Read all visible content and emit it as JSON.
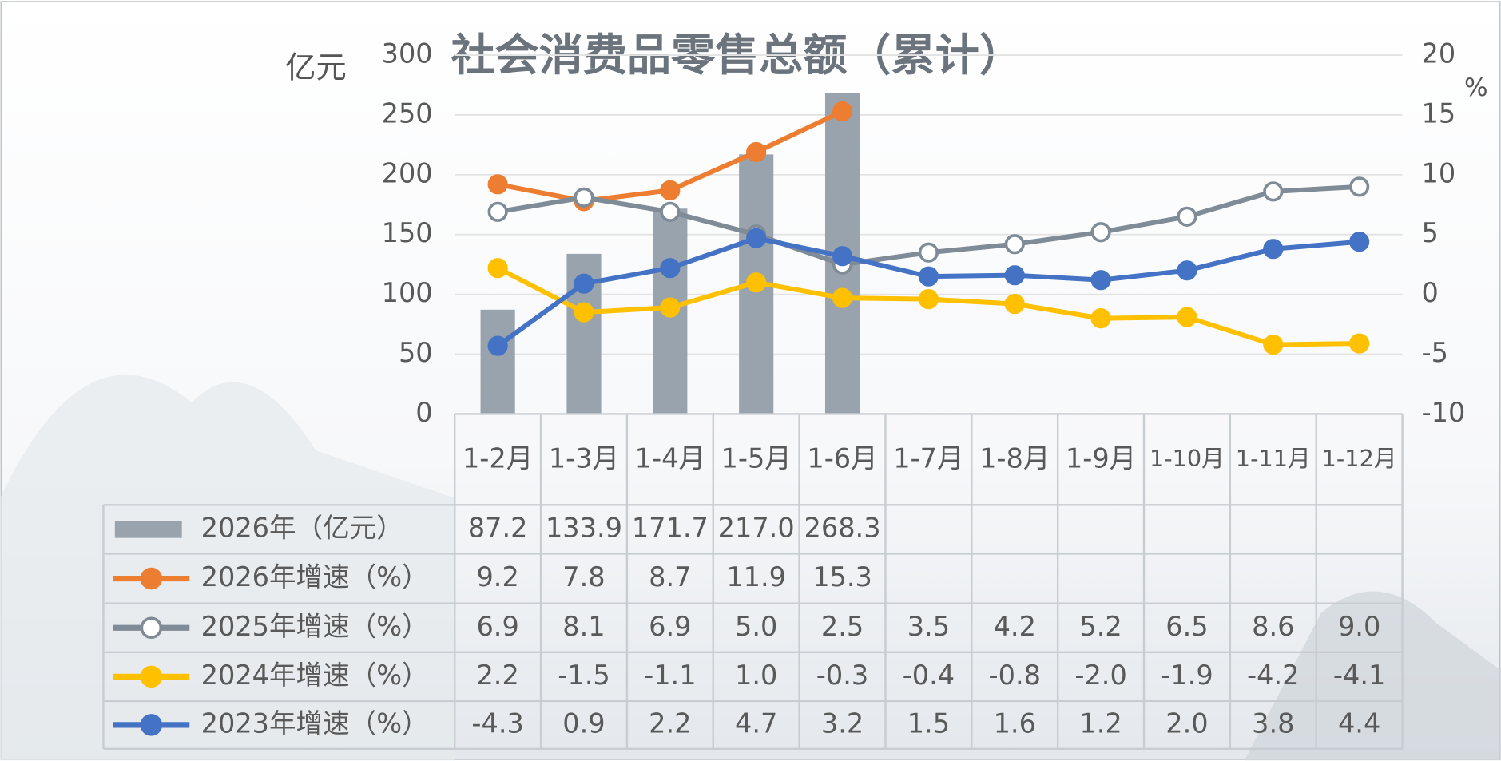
{
  "chart_data": {
    "type": "bar-line-table",
    "title": "社会消费品零售总额（累计）",
    "ylabel": "亿元",
    "y2label": "%",
    "categories": [
      "1-2月",
      "1-3月",
      "1-4月",
      "1-5月",
      "1-6月",
      "1-7月",
      "1-8月",
      "1-9月",
      "1-10月",
      "1-11月",
      "1-12月"
    ],
    "ylim": [
      0,
      300
    ],
    "yticks": [
      0,
      50,
      100,
      150,
      200,
      250,
      300
    ],
    "y2lim": [
      -10,
      20
    ],
    "y2ticks": [
      -10,
      -5,
      0,
      5,
      10,
      15,
      20
    ],
    "grid": true,
    "series": [
      {
        "name": "2026年（亿元）",
        "type": "bar",
        "color": "#99a3ae",
        "values": [
          87.2,
          133.9,
          171.7,
          217.0,
          268.3,
          null,
          null,
          null,
          null,
          null,
          null
        ],
        "value_labels": [
          "87.2",
          "133.9",
          "171.7",
          "217.0",
          "268.3",
          null,
          null,
          null,
          null,
          null,
          null
        ]
      },
      {
        "name": "2026年增速（%）",
        "type": "line",
        "axis": "y2",
        "color": "#ed7d31",
        "marker_fill": "#ed7d31",
        "values": [
          9.2,
          7.8,
          8.7,
          11.9,
          15.3,
          null,
          null,
          null,
          null,
          null,
          null
        ],
        "value_labels": [
          "9.2",
          "7.8",
          "8.7",
          "11.9",
          "15.3",
          null,
          null,
          null,
          null,
          null,
          null
        ]
      },
      {
        "name": "2025年增速（%）",
        "type": "line",
        "axis": "y2",
        "color": "#7f8b97",
        "marker_fill": "#ffffff",
        "values": [
          6.9,
          8.1,
          6.9,
          5.0,
          2.5,
          3.5,
          4.2,
          5.2,
          6.5,
          8.6,
          9.0
        ],
        "value_labels": [
          "6.9",
          "8.1",
          "6.9",
          "5.0",
          "2.5",
          "3.5",
          "4.2",
          "5.2",
          "6.5",
          "8.6",
          "9.0"
        ]
      },
      {
        "name": "2024年增速（%）",
        "type": "line",
        "axis": "y2",
        "color": "#ffc000",
        "marker_fill": "#ffc000",
        "values": [
          2.2,
          -1.5,
          -1.1,
          1.0,
          -0.3,
          -0.4,
          -0.8,
          -2.0,
          -1.9,
          -4.2,
          -4.1
        ],
        "value_labels": [
          "2.2",
          "-1.5",
          "-1.1",
          "1.0",
          "-0.3",
          "-0.4",
          "-0.8",
          "-2.0",
          "-1.9",
          "-4.2",
          "-4.1"
        ]
      },
      {
        "name": "2023年增速（%）",
        "type": "line",
        "axis": "y2",
        "color": "#4472c4",
        "marker_fill": "#4472c4",
        "values": [
          -4.3,
          0.9,
          2.2,
          4.7,
          3.2,
          1.5,
          1.6,
          1.2,
          2.0,
          3.8,
          4.4
        ],
        "value_labels": [
          "-4.3",
          "0.9",
          "2.2",
          "4.7",
          "3.2",
          "1.5",
          "1.6",
          "1.2",
          "2.0",
          "3.8",
          "4.4"
        ]
      }
    ]
  }
}
